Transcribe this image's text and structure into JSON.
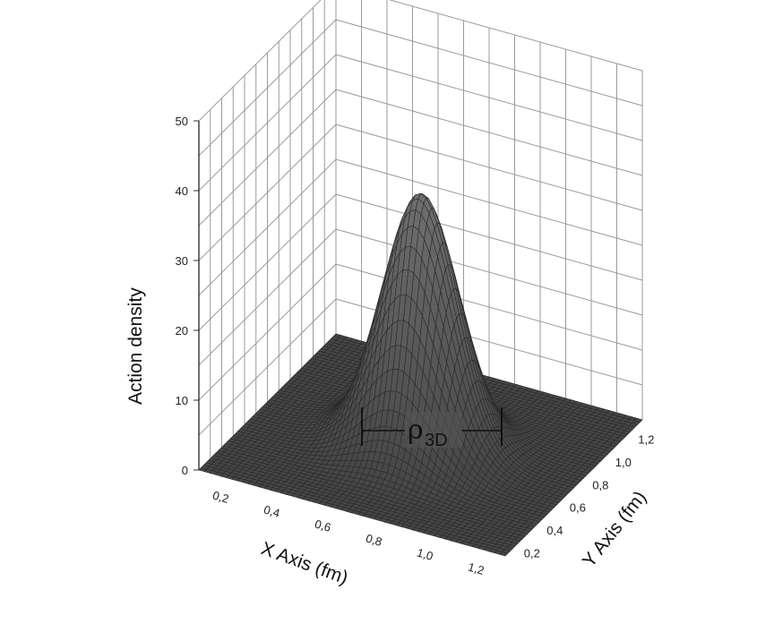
{
  "chart_data": {
    "type": "surface3d",
    "title": "",
    "xlabel": "X Axis (fm)",
    "ylabel": "Y Axis (fm)",
    "zlabel": "Action density",
    "x_ticks": [
      "0,2",
      "0,4",
      "0,6",
      "0,8",
      "1,0",
      "1,2"
    ],
    "y_ticks": [
      "0,2",
      "0,4",
      "0,6",
      "0,8",
      "1,0",
      "1,2"
    ],
    "z_ticks": [
      "0",
      "10",
      "20",
      "30",
      "40",
      "50"
    ],
    "xlim": [
      0.1,
      1.3
    ],
    "ylim": [
      0.1,
      1.3
    ],
    "zlim": [
      0,
      50
    ],
    "grid": true,
    "surface": {
      "shape": "gaussian peak",
      "center_x": 0.7,
      "center_y": 0.7,
      "peak_value": 36,
      "sigma": 0.14
    },
    "annotation": {
      "symbol": "ρ",
      "subscript": "3D",
      "meaning": "width marker at the base of the peak"
    }
  }
}
